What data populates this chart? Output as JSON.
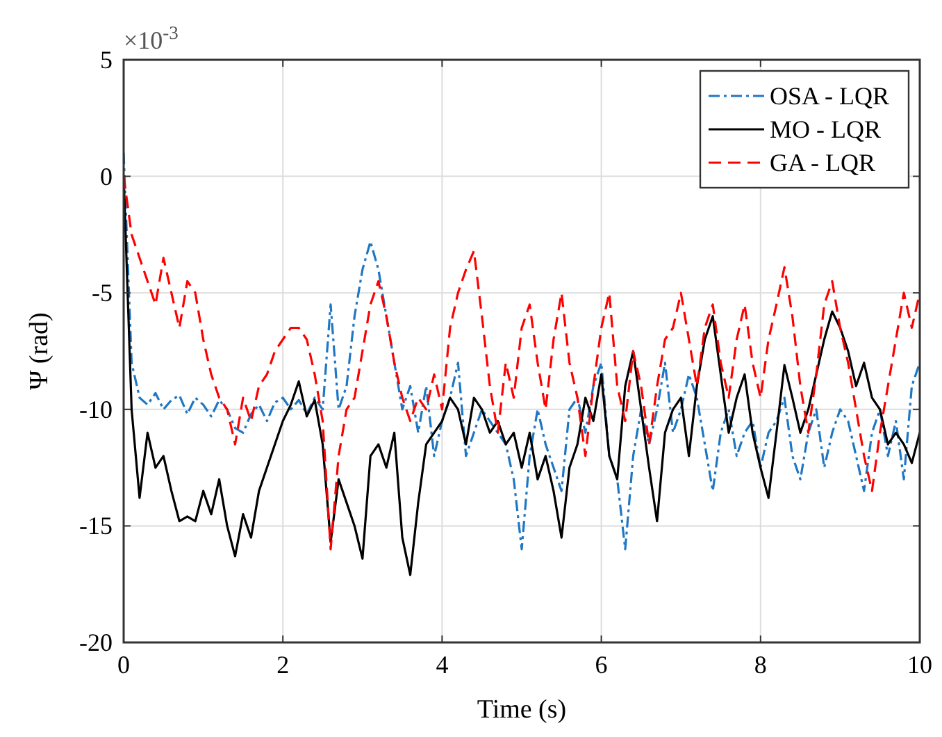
{
  "chart_data": {
    "type": "line",
    "xlabel": "Time (s)",
    "ylabel": "Ψ (rad)",
    "annotations": [
      "×10$^{-3}$"
    ],
    "x": [
      0,
      0.1,
      0.2,
      0.3,
      0.4,
      0.5,
      0.6,
      0.7,
      0.8,
      0.9,
      1,
      1.1,
      1.2,
      1.3,
      1.4,
      1.5,
      1.6,
      1.7,
      1.8,
      1.9,
      2,
      2.1,
      2.2,
      2.3,
      2.4,
      2.5,
      2.6,
      2.7,
      2.8,
      2.9,
      3,
      3.1,
      3.2,
      3.3,
      3.4,
      3.5,
      3.6,
      3.7,
      3.8,
      3.9,
      4,
      4.1,
      4.2,
      4.3,
      4.4,
      4.5,
      4.6,
      4.7,
      4.8,
      4.9,
      5,
      5.1,
      5.2,
      5.3,
      5.4,
      5.5,
      5.6,
      5.7,
      5.8,
      5.9,
      6,
      6.1,
      6.2,
      6.3,
      6.4,
      6.5,
      6.6,
      6.7,
      6.8,
      6.9,
      7,
      7.1,
      7.2,
      7.3,
      7.4,
      7.5,
      7.6,
      7.7,
      7.8,
      7.9,
      8,
      8.1,
      8.2,
      8.3,
      8.4,
      8.5,
      8.6,
      8.7,
      8.8,
      8.9,
      9,
      9.1,
      9.2,
      9.3,
      9.4,
      9.5,
      9.6,
      9.7,
      9.8,
      9.9,
      10
    ],
    "series": [
      {
        "name": "OSA - LQR",
        "color": "#1f77c4",
        "line_style": "dashdot",
        "values": [
          1,
          -8,
          -9.5,
          -9.8,
          -9.3,
          -10,
          -9.6,
          -9.4,
          -10.2,
          -9.5,
          -9.8,
          -10.3,
          -9.6,
          -10,
          -10.8,
          -11,
          -10.2,
          -9.8,
          -10.5,
          -9.7,
          -9.5,
          -10,
          -9.6,
          -10.2,
          -9.5,
          -10,
          -5.5,
          -10,
          -9,
          -6,
          -4,
          -2.8,
          -4,
          -6,
          -8,
          -10,
          -9,
          -11,
          -9,
          -12,
          -10.5,
          -9.5,
          -8,
          -12,
          -11,
          -10,
          -10.5,
          -11,
          -11.5,
          -13,
          -16,
          -12,
          -10,
          -11.5,
          -12.5,
          -13.5,
          -10,
          -9.5,
          -11,
          -9,
          -8,
          -12,
          -13,
          -16,
          -12,
          -10,
          -11.5,
          -10,
          -8,
          -11,
          -10,
          -8.5,
          -9.5,
          -11.5,
          -13.5,
          -11,
          -10,
          -12,
          -11,
          -10.5,
          -12.5,
          -11,
          -10.5,
          -9.5,
          -12,
          -13,
          -11,
          -10,
          -12.5,
          -11,
          -10,
          -10.5,
          -12,
          -13.5,
          -11,
          -10,
          -12,
          -10.5,
          -13,
          -9,
          -8
        ]
      },
      {
        "name": "MO - LQR",
        "color": "#000000",
        "line_style": "solid",
        "values": [
          0,
          -10,
          -13.8,
          -11,
          -12.5,
          -12,
          -13.5,
          -14.8,
          -14.6,
          -14.8,
          -13.5,
          -14.5,
          -13,
          -15,
          -16.3,
          -14.5,
          -15.5,
          -13.5,
          -12.5,
          -11.5,
          -10.5,
          -9.8,
          -8.8,
          -10.3,
          -9.6,
          -11.5,
          -15.7,
          -13,
          -14,
          -15,
          -16.4,
          -12,
          -11.5,
          -12.5,
          -11,
          -15.5,
          -17.1,
          -14,
          -11.5,
          -11,
          -10.5,
          -9.5,
          -10,
          -11.5,
          -9.5,
          -10,
          -11,
          -10.5,
          -11.5,
          -11,
          -12.5,
          -11,
          -13,
          -12,
          -13.5,
          -15.5,
          -12.5,
          -11.5,
          -9.5,
          -10.5,
          -8.5,
          -12,
          -13,
          -9,
          -7.5,
          -10,
          -12.5,
          -14.8,
          -11,
          -10,
          -9.5,
          -12,
          -9,
          -7,
          -6,
          -8.5,
          -11,
          -9.5,
          -8.5,
          -11,
          -12.5,
          -13.8,
          -11,
          -8.1,
          -9.5,
          -11,
          -10,
          -8.5,
          -7,
          -5.8,
          -6.5,
          -7.5,
          -9,
          -8,
          -9.5,
          -10,
          -11.5,
          -11,
          -11.5,
          -12.3,
          -11
        ]
      },
      {
        "name": "GA - LQR",
        "color": "#ff0000",
        "line_style": "dashed",
        "values": [
          0,
          -2.5,
          -3.5,
          -4.5,
          -5.5,
          -3.5,
          -5,
          -6.5,
          -4.5,
          -5,
          -7,
          -8.5,
          -9.5,
          -10,
          -11.5,
          -9.5,
          -10.5,
          -9,
          -8.5,
          -7.5,
          -7,
          -6.5,
          -6.5,
          -7,
          -8.5,
          -10.5,
          -16,
          -12,
          -10,
          -9.5,
          -7.5,
          -5.5,
          -4.5,
          -6,
          -8,
          -9.5,
          -10.5,
          -9.5,
          -10,
          -8.5,
          -10,
          -6.5,
          -5,
          -4,
          -3.2,
          -6,
          -9,
          -11,
          -8,
          -9.5,
          -6.5,
          -5.5,
          -8,
          -10,
          -7,
          -5,
          -8,
          -9.5,
          -12,
          -9,
          -6.5,
          -5,
          -9,
          -10.5,
          -7.5,
          -9,
          -11.5,
          -9,
          -7,
          -6.5,
          -5,
          -7,
          -9,
          -6.5,
          -5.5,
          -8,
          -9.5,
          -7,
          -5.5,
          -8,
          -9.5,
          -7,
          -5.5,
          -3.9,
          -6,
          -9,
          -11,
          -8.5,
          -5.5,
          -4.5,
          -6.5,
          -8,
          -10,
          -12,
          -13.5,
          -11,
          -9,
          -7,
          -5,
          -6.5,
          -5
        ]
      }
    ],
    "xlim": [
      0,
      10
    ],
    "xticks": [
      0,
      2,
      4,
      6,
      8,
      10
    ],
    "ylim": [
      -20,
      5
    ],
    "yticks": [
      -20,
      -15,
      -10,
      -5,
      0,
      5
    ],
    "grid": true,
    "legend": "top right"
  }
}
